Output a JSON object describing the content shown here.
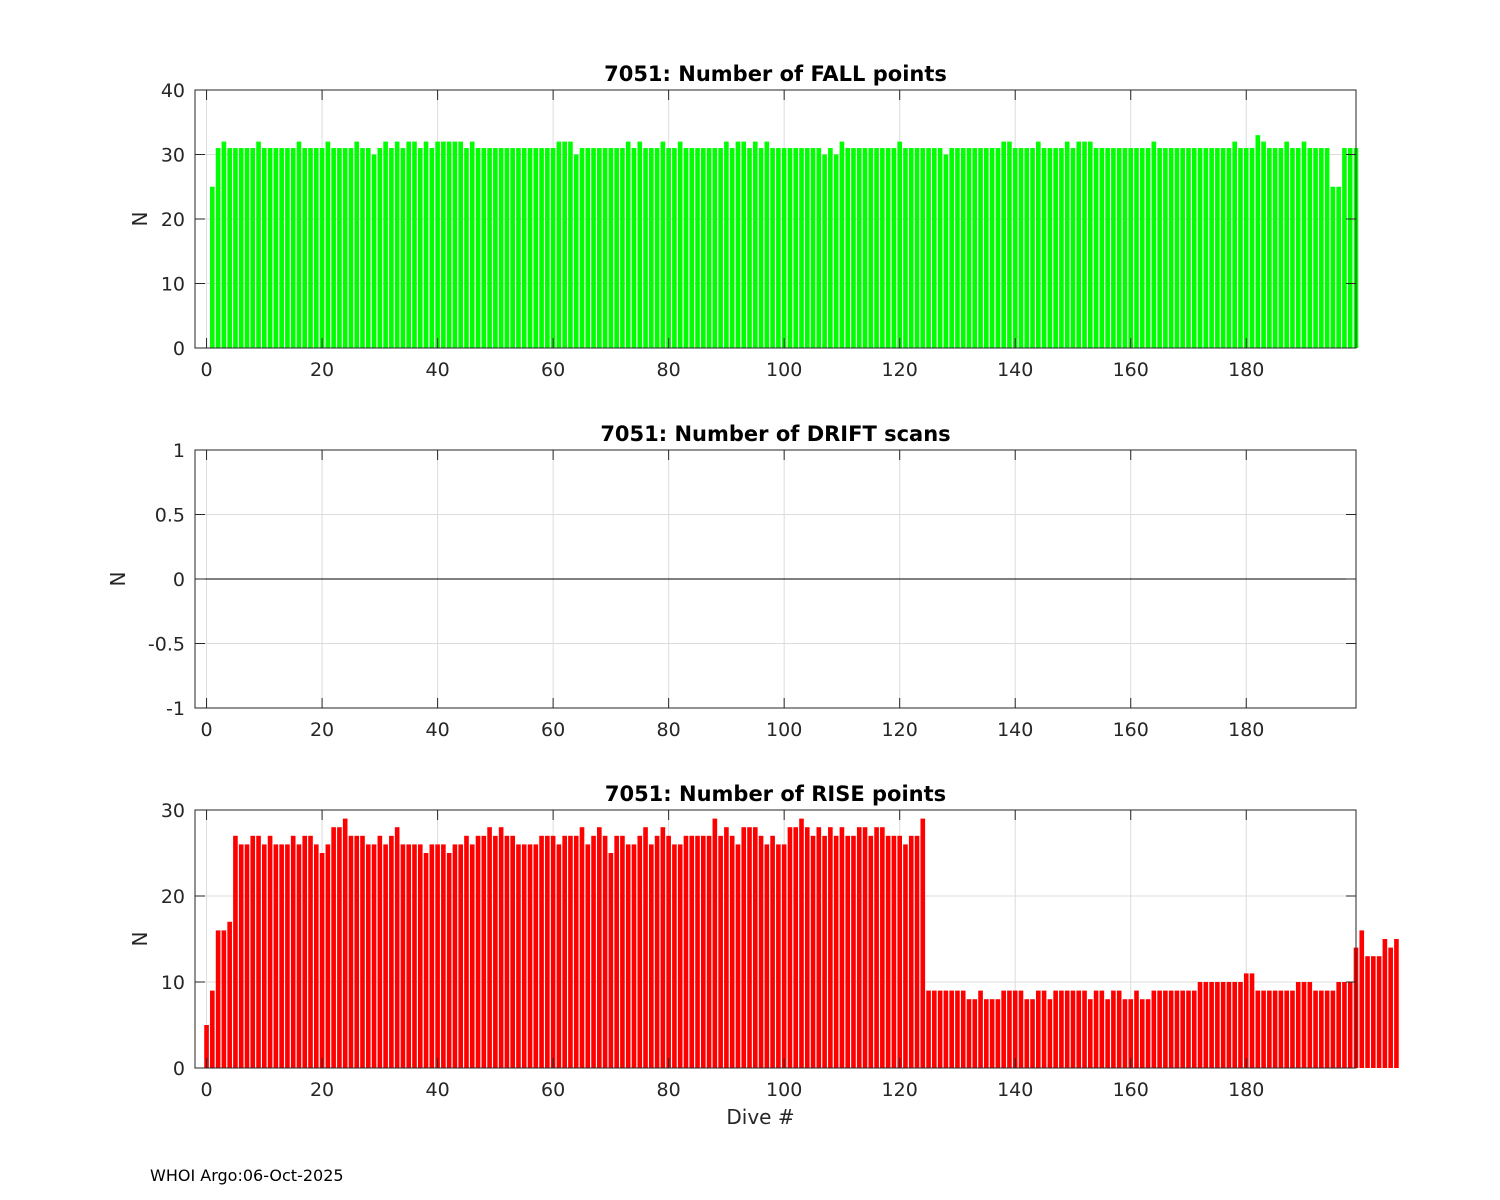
{
  "footer": "WHOI Argo:06-Oct-2025",
  "chart_data": [
    {
      "type": "bar",
      "title": "7051: Number of FALL points",
      "xlabel": "",
      "ylabel": "N",
      "xlim": [
        -2,
        199
      ],
      "ylim": [
        0,
        40
      ],
      "xticks": [
        "0",
        "20",
        "40",
        "60",
        "80",
        "100",
        "120",
        "140",
        "160",
        "180"
      ],
      "yticks": [
        "0",
        "10",
        "20",
        "30",
        "40"
      ],
      "grid": true,
      "color": "#00ff00",
      "x_start": 1,
      "values": [
        25,
        31,
        32,
        31,
        31,
        31,
        31,
        31,
        32,
        31,
        31,
        31,
        31,
        31,
        31,
        32,
        31,
        31,
        31,
        31,
        32,
        31,
        31,
        31,
        31,
        32,
        31,
        31,
        30,
        31,
        32,
        31,
        32,
        31,
        32,
        32,
        31,
        32,
        31,
        32,
        32,
        32,
        32,
        32,
        31,
        32,
        31,
        31,
        31,
        31,
        31,
        31,
        31,
        31,
        31,
        31,
        31,
        31,
        31,
        31,
        32,
        32,
        32,
        30,
        31,
        31,
        31,
        31,
        31,
        31,
        31,
        31,
        32,
        31,
        32,
        31,
        31,
        31,
        32,
        31,
        31,
        32,
        31,
        31,
        31,
        31,
        31,
        31,
        31,
        32,
        31,
        32,
        32,
        31,
        32,
        31,
        32,
        31,
        31,
        31,
        31,
        31,
        31,
        31,
        31,
        31,
        30,
        31,
        30,
        32,
        31,
        31,
        31,
        31,
        31,
        31,
        31,
        31,
        31,
        32,
        31,
        31,
        31,
        31,
        31,
        31,
        31,
        30,
        31,
        31,
        31,
        31,
        31,
        31,
        31,
        31,
        31,
        32,
        32,
        31,
        31,
        31,
        31,
        32,
        31,
        31,
        31,
        31,
        32,
        31,
        32,
        32,
        32,
        31,
        31,
        31,
        31,
        31,
        31,
        31,
        31,
        31,
        31,
        32,
        31,
        31,
        31,
        31,
        31,
        31,
        31,
        31,
        31,
        31,
        31,
        31,
        31,
        32,
        31,
        31,
        31,
        33,
        32,
        31,
        31,
        31,
        32,
        31,
        31,
        32,
        31,
        31,
        31,
        31,
        25,
        25,
        31,
        31,
        31
      ]
    },
    {
      "type": "bar",
      "title": "7051: Number of DRIFT scans",
      "xlabel": "",
      "ylabel": "N",
      "xlim": [
        -2,
        199
      ],
      "ylim": [
        -1,
        1
      ],
      "xticks": [
        "0",
        "20",
        "40",
        "60",
        "80",
        "100",
        "120",
        "140",
        "160",
        "180"
      ],
      "yticks": [
        "-1",
        "-0.5",
        "0",
        "0.5",
        "1"
      ],
      "grid": true,
      "color": "#000000",
      "x_start": 0,
      "values": []
    },
    {
      "type": "bar",
      "title": "7051: Number of RISE points",
      "xlabel": "Dive #",
      "ylabel": "N",
      "xlim": [
        -2,
        199
      ],
      "ylim": [
        0,
        30
      ],
      "xticks": [
        "0",
        "20",
        "40",
        "60",
        "80",
        "100",
        "120",
        "140",
        "160",
        "180"
      ],
      "yticks": [
        "0",
        "10",
        "20",
        "30"
      ],
      "grid": true,
      "color": "#ff0000",
      "x_start": 0,
      "values": [
        5,
        9,
        16,
        16,
        17,
        27,
        26,
        26,
        27,
        27,
        26,
        27,
        26,
        26,
        26,
        27,
        26,
        27,
        27,
        26,
        25,
        26,
        28,
        28,
        29,
        27,
        27,
        27,
        26,
        26,
        27,
        26,
        27,
        28,
        26,
        26,
        26,
        26,
        25,
        26,
        26,
        26,
        25,
        26,
        26,
        27,
        26,
        27,
        27,
        28,
        27,
        28,
        27,
        27,
        26,
        26,
        26,
        26,
        27,
        27,
        27,
        26,
        27,
        27,
        27,
        28,
        26,
        27,
        28,
        27,
        25,
        27,
        27,
        26,
        26,
        27,
        28,
        26,
        27,
        28,
        27,
        26,
        26,
        27,
        27,
        27,
        27,
        27,
        29,
        27,
        28,
        27,
        26,
        28,
        28,
        28,
        27,
        26,
        27,
        26,
        26,
        28,
        28,
        29,
        28,
        27,
        28,
        27,
        28,
        27,
        28,
        27,
        27,
        28,
        28,
        27,
        28,
        28,
        27,
        27,
        27,
        26,
        27,
        27,
        29,
        9,
        9,
        9,
        9,
        9,
        9,
        9,
        8,
        8,
        9,
        8,
        8,
        8,
        9,
        9,
        9,
        9,
        8,
        8,
        9,
        9,
        8,
        9,
        9,
        9,
        9,
        9,
        9,
        8,
        9,
        9,
        8,
        9,
        9,
        8,
        8,
        9,
        8,
        8,
        9,
        9,
        9,
        9,
        9,
        9,
        9,
        9,
        10,
        10,
        10,
        10,
        10,
        10,
        10,
        10,
        11,
        11,
        9,
        9,
        9,
        9,
        9,
        9,
        9,
        10,
        10,
        10,
        9,
        9,
        9,
        9,
        10,
        10,
        10,
        14,
        16,
        13,
        13,
        13,
        15,
        14,
        15
      ]
    }
  ]
}
